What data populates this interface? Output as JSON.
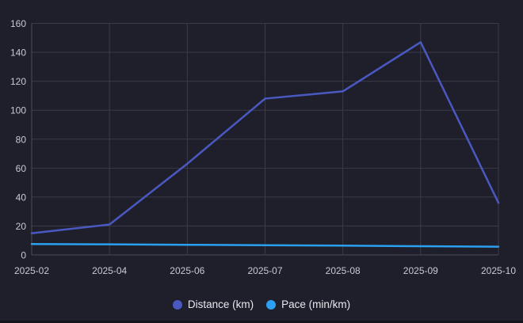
{
  "chart_data": {
    "type": "line",
    "title": "",
    "categories": [
      "2025-02",
      "2025-04",
      "2025-06",
      "2025-07",
      "2025-08",
      "2025-09",
      "2025-10"
    ],
    "series": [
      {
        "name": "Distance (km)",
        "color": "#4a59c2",
        "values": [
          15,
          21,
          63,
          108,
          113,
          147,
          36
        ]
      },
      {
        "name": "Pace (min/km)",
        "color": "#2b9ff0",
        "values": [
          7.5,
          7.3,
          7.0,
          6.7,
          6.4,
          6.0,
          5.7
        ]
      }
    ],
    "xlabel": "",
    "ylabel": "",
    "ylim": [
      0,
      160
    ],
    "y_ticks": [
      0,
      20,
      40,
      60,
      80,
      100,
      120,
      140,
      160
    ],
    "grid": "on",
    "legend_position": "bottom"
  },
  "colors": {
    "background": "#1f1f2b",
    "grid": "#3b3b47",
    "axis": "#4b4b58",
    "tick_label": "#c9c9d1",
    "legend_text": "#e8e8ec"
  }
}
